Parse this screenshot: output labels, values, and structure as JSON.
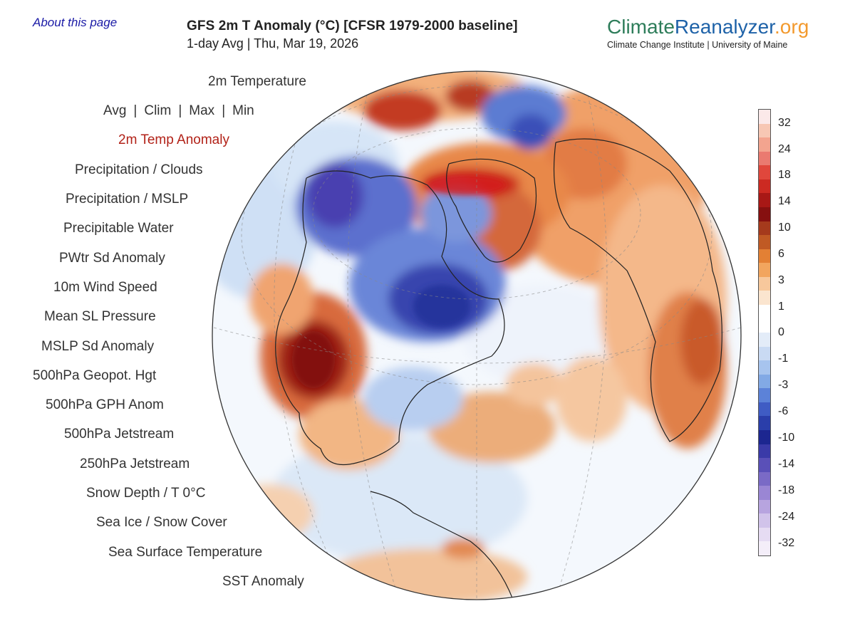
{
  "about_link": "About this page",
  "header": {
    "title": "GFS 2m T Anomaly (°C) [CFSR 1979-2000 baseline]",
    "subtitle": "1-day Avg | Thu, Mar 19, 2026"
  },
  "brand": {
    "name_part1": "Climate",
    "name_part2": "Reanalyzer",
    "name_part3": ".org",
    "subtitle": "Climate Change Institute | University of Maine"
  },
  "menu": {
    "temperature": "2m Temperature",
    "stat_options": [
      "Avg",
      "Clim",
      "Max",
      "Min"
    ],
    "separator": "|",
    "items": [
      "2m Temp Anomaly",
      "Precipitation / Clouds",
      "Precipitation / MSLP",
      "Precipitable Water",
      "PWtr Sd Anomaly",
      "10m Wind Speed",
      "Mean SL Pressure",
      "MSLP Sd Anomaly",
      "500hPa Geopot. Hgt",
      "500hPa GPH Anom",
      "500hPa Jetstream",
      "250hPa Jetstream",
      "Snow Depth / T 0°C",
      "Sea Ice / Snow Cover",
      "Sea Surface Temperature",
      "SST Anomaly"
    ],
    "active_item": "2m Temp Anomaly"
  },
  "colors": {
    "active_menu": "#b22218",
    "about_link": "#1a1aa6",
    "ocean_neutral": "#f4f8fd"
  },
  "colorbar": {
    "labels": [
      "32",
      "24",
      "18",
      "14",
      "10",
      "6",
      "3",
      "1",
      "0",
      "-1",
      "-3",
      "-6",
      "-10",
      "-14",
      "-18",
      "-24",
      "-32"
    ],
    "colors": [
      "#fbe9e9",
      "#f7c7b4",
      "#f3a48f",
      "#ea7a70",
      "#e0473c",
      "#cc2a22",
      "#a81816",
      "#861010",
      "#a53a1c",
      "#c05a24",
      "#e38034",
      "#f2a55e",
      "#f7c89c",
      "#fbe5cf",
      "#ffffff",
      "#ffffff",
      "#e3ecf8",
      "#c9daf3",
      "#a7c4ee",
      "#82a9e5",
      "#5c82d8",
      "#3f5cc4",
      "#2a3eaa",
      "#1c2690",
      "#3a3aa8",
      "#5a50b8",
      "#7a6ac6",
      "#9a86d4",
      "#b7a4df",
      "#d1c3ea",
      "#e6dcf3",
      "#f4eef9"
    ]
  },
  "map": {
    "projection": "orthographic",
    "center": "North Atlantic / Arctic",
    "warm_regions": [
      "Western United States",
      "Northern Greenland",
      "Eastern Europe",
      "Siberia",
      "North Africa",
      "Central Atlantic"
    ],
    "cold_regions": [
      "Canadian Arctic",
      "Hudson Bay",
      "Eastern Siberia"
    ]
  }
}
